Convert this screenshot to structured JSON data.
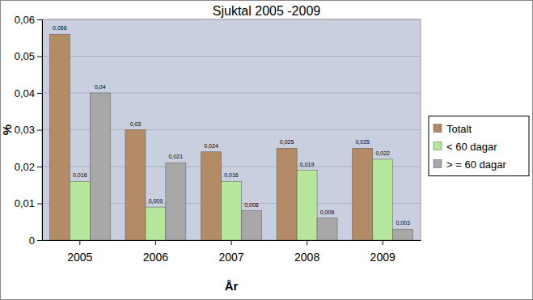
{
  "chart_data": {
    "type": "bar",
    "title": "Sjuktal 2005 -2009",
    "x_label": "År",
    "y_label": "%",
    "categories": [
      "2005",
      "2006",
      "2007",
      "2008",
      "2009"
    ],
    "series": [
      {
        "name": "Totalt",
        "color": "#b38b66",
        "values": [
          0.056,
          0.03,
          0.024,
          0.025,
          0.025
        ],
        "value_labels": [
          "0,056",
          "0,03",
          "0,024",
          "0,025",
          "0,025"
        ]
      },
      {
        "name": "< 60 dagar",
        "color": "#b5e69c",
        "values": [
          0.016,
          0.009,
          0.016,
          0.019,
          0.022
        ],
        "value_labels": [
          "0,016",
          "0,009",
          "0,016",
          "0,019",
          "0,022"
        ]
      },
      {
        "name": "> = 60 dagar",
        "color": "#a8a8a8",
        "values": [
          0.04,
          0.021,
          0.008,
          0.006,
          0.003
        ],
        "value_labels": [
          "0,04",
          "0,021",
          "0,008",
          "0,006",
          "0,003"
        ]
      }
    ],
    "ylim": [
      0,
      0.06
    ],
    "yticks": [
      0,
      {
        "value": 0.01,
        "label": "0,01"
      },
      {
        "value": 0.02,
        "label": "0,02"
      },
      {
        "value": 0.03,
        "label": "0,03"
      },
      {
        "value": 0.04,
        "label": "0,04"
      },
      {
        "value": 0.05,
        "label": "0,05"
      },
      {
        "value": 0.06,
        "label": "0,06"
      }
    ],
    "grid": true,
    "legend": "right",
    "data_labels": true
  }
}
